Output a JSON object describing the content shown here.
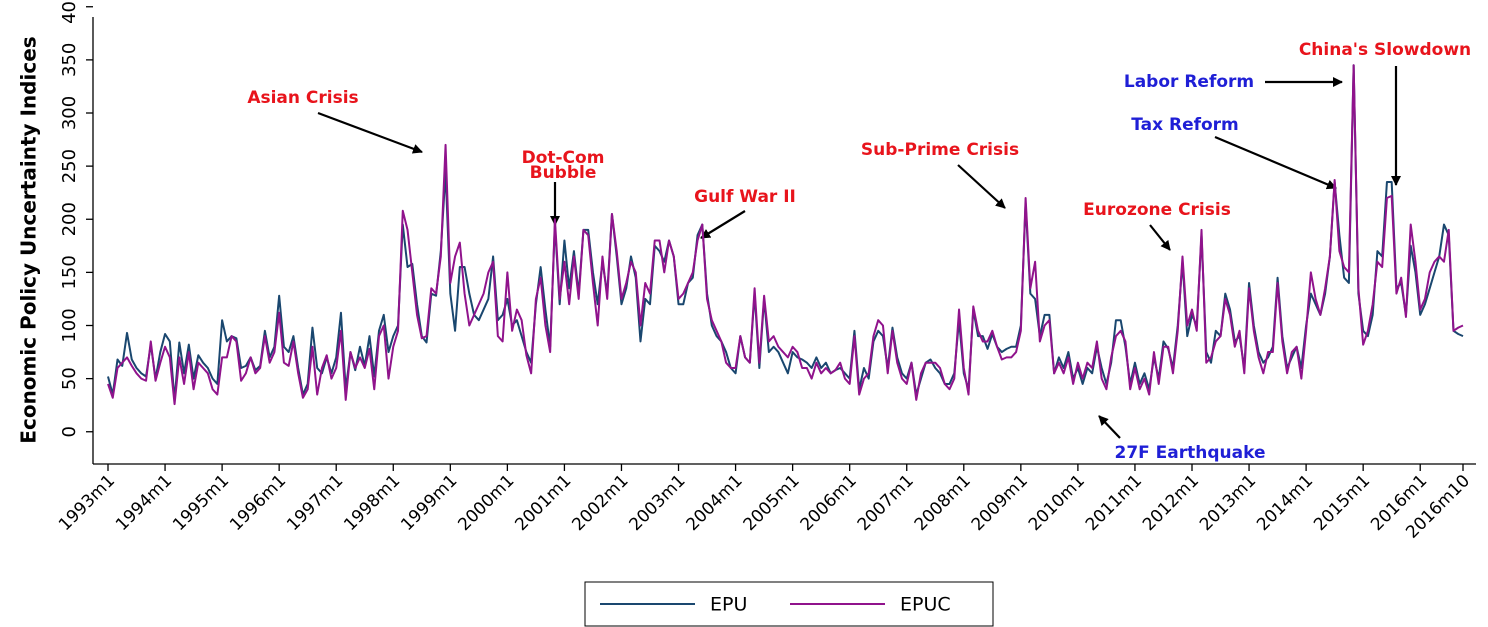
{
  "chart_data": {
    "type": "line",
    "ylabel": "Economic Policy Uncertainty Indices",
    "ylim": [
      -10,
      410
    ],
    "yticks": [
      0,
      50,
      100,
      150,
      200,
      250,
      300,
      350,
      400
    ],
    "categories": [
      "1993m1",
      null,
      null,
      null,
      null,
      null,
      null,
      null,
      null,
      null,
      null,
      null,
      "1994m1",
      null,
      null,
      null,
      null,
      null,
      null,
      null,
      null,
      null,
      null,
      null,
      "1995m1",
      null,
      null,
      null,
      null,
      null,
      null,
      null,
      null,
      null,
      null,
      null,
      "1996m1",
      null,
      null,
      null,
      null,
      null,
      null,
      null,
      null,
      null,
      null,
      null,
      "1997m1",
      null,
      null,
      null,
      null,
      null,
      null,
      null,
      null,
      null,
      null,
      null,
      "1998m1",
      null,
      null,
      null,
      null,
      null,
      null,
      null,
      null,
      null,
      null,
      null,
      "1999m1",
      null,
      null,
      null,
      null,
      null,
      null,
      null,
      null,
      null,
      null,
      null,
      "2000m1",
      null,
      null,
      null,
      null,
      null,
      null,
      null,
      null,
      null,
      null,
      null,
      "2001m1",
      null,
      null,
      null,
      null,
      null,
      null,
      null,
      null,
      null,
      null,
      null,
      "2002m1",
      null,
      null,
      null,
      null,
      null,
      null,
      null,
      null,
      null,
      null,
      null,
      "2003m1",
      null,
      null,
      null,
      null,
      null,
      null,
      null,
      null,
      null,
      null,
      null,
      "2004m1",
      null,
      null,
      null,
      null,
      null,
      null,
      null,
      null,
      null,
      null,
      null,
      "2005m1",
      null,
      null,
      null,
      null,
      null,
      null,
      null,
      null,
      null,
      null,
      null,
      "2006m1",
      null,
      null,
      null,
      null,
      null,
      null,
      null,
      null,
      null,
      null,
      null,
      "2007m1",
      null,
      null,
      null,
      null,
      null,
      null,
      null,
      null,
      null,
      null,
      null,
      "2008m1",
      null,
      null,
      null,
      null,
      null,
      null,
      null,
      null,
      null,
      null,
      null,
      "2009m1",
      null,
      null,
      null,
      null,
      null,
      null,
      null,
      null,
      null,
      null,
      null,
      "2010m1",
      null,
      null,
      null,
      null,
      null,
      null,
      null,
      null,
      null,
      null,
      null,
      "2011m1",
      null,
      null,
      null,
      null,
      null,
      null,
      null,
      null,
      null,
      null,
      null,
      "2012m1",
      null,
      null,
      null,
      null,
      null,
      null,
      null,
      null,
      null,
      null,
      null,
      "2013m1",
      null,
      null,
      null,
      null,
      null,
      null,
      null,
      null,
      null,
      null,
      null,
      "2014m1",
      null,
      null,
      null,
      null,
      null,
      null,
      null,
      null,
      null,
      null,
      null,
      "2015m1",
      null,
      null,
      null,
      null,
      null,
      null,
      null,
      null,
      null,
      null,
      null,
      "2016m1",
      null,
      null,
      null,
      null,
      null,
      null,
      null,
      null,
      "2016m10"
    ],
    "series": [
      {
        "name": "EPU",
        "color": "#1a476f",
        "values": [
          52,
          35,
          68,
          62,
          93,
          68,
          60,
          55,
          52,
          82,
          50,
          75,
          92,
          85,
          30,
          84,
          55,
          82,
          50,
          72,
          65,
          60,
          50,
          45,
          105,
          85,
          90,
          88,
          60,
          62,
          70,
          58,
          62,
          95,
          70,
          80,
          128,
          80,
          75,
          90,
          60,
          35,
          45,
          98,
          60,
          55,
          70,
          55,
          70,
          112,
          40,
          75,
          58,
          80,
          62,
          90,
          52,
          95,
          110,
          75,
          90,
          100,
          195,
          155,
          158,
          120,
          90,
          84,
          130,
          128,
          170,
          245,
          130,
          95,
          155,
          155,
          130,
          110,
          105,
          115,
          125,
          165,
          105,
          110,
          125,
          100,
          105,
          90,
          75,
          65,
          120,
          155,
          115,
          80,
          195,
          120,
          180,
          135,
          170,
          130,
          190,
          190,
          150,
          120,
          160,
          130,
          205,
          165,
          120,
          135,
          165,
          145,
          85,
          125,
          120,
          175,
          170,
          160,
          180,
          165,
          120,
          120,
          140,
          145,
          185,
          195,
          130,
          100,
          90,
          85,
          75,
          60,
          55,
          90,
          70,
          65,
          130,
          60,
          125,
          75,
          80,
          75,
          65,
          55,
          75,
          70,
          68,
          65,
          60,
          70,
          60,
          65,
          55,
          58,
          60,
          55,
          50,
          95,
          40,
          60,
          50,
          85,
          95,
          90,
          60,
          98,
          70,
          55,
          50,
          65,
          35,
          50,
          65,
          68,
          60,
          55,
          45,
          45,
          55,
          105,
          55,
          40,
          115,
          90,
          90,
          78,
          92,
          80,
          75,
          78,
          80,
          80,
          100,
          215,
          130,
          125,
          90,
          110,
          110,
          55,
          70,
          60,
          75,
          50,
          60,
          45,
          60,
          55,
          80,
          60,
          45,
          65,
          105,
          105,
          80,
          45,
          65,
          45,
          55,
          40,
          70,
          50,
          85,
          78,
          60,
          100,
          160,
          90,
          110,
          100,
          185,
          75,
          65,
          95,
          90,
          130,
          115,
          85,
          90,
          60,
          140,
          100,
          75,
          65,
          70,
          80,
          145,
          90,
          60,
          70,
          80,
          60,
          100,
          130,
          120,
          110,
          130,
          165,
          235,
          185,
          145,
          140,
          345,
          130,
          95,
          90,
          110,
          170,
          165,
          235,
          235,
          135,
          140,
          110,
          175,
          150,
          110,
          120,
          135,
          150,
          165,
          195,
          185,
          95,
          92,
          90
        ]
      },
      {
        "name": "EPUC",
        "color": "#90138c",
        "values": [
          45,
          32,
          60,
          65,
          70,
          62,
          55,
          50,
          48,
          85,
          48,
          65,
          80,
          70,
          26,
          70,
          45,
          75,
          40,
          65,
          60,
          55,
          40,
          35,
          70,
          70,
          90,
          85,
          48,
          55,
          70,
          55,
          60,
          90,
          65,
          75,
          112,
          65,
          62,
          85,
          55,
          32,
          40,
          80,
          35,
          60,
          72,
          50,
          60,
          95,
          30,
          75,
          60,
          70,
          60,
          78,
          40,
          90,
          100,
          50,
          80,
          95,
          208,
          190,
          150,
          110,
          88,
          90,
          135,
          130,
          165,
          270,
          140,
          165,
          178,
          130,
          100,
          110,
          120,
          130,
          150,
          160,
          90,
          85,
          150,
          95,
          115,
          105,
          72,
          55,
          125,
          145,
          100,
          75,
          200,
          125,
          160,
          120,
          165,
          125,
          190,
          185,
          140,
          100,
          165,
          125,
          205,
          170,
          125,
          140,
          160,
          150,
          100,
          140,
          130,
          180,
          180,
          150,
          180,
          165,
          125,
          130,
          140,
          150,
          180,
          195,
          125,
          105,
          95,
          85,
          65,
          60,
          60,
          90,
          70,
          65,
          135,
          65,
          128,
          85,
          90,
          80,
          75,
          70,
          80,
          75,
          60,
          60,
          50,
          65,
          55,
          60,
          55,
          58,
          65,
          50,
          45,
          90,
          35,
          50,
          55,
          90,
          105,
          100,
          55,
          95,
          65,
          50,
          45,
          65,
          30,
          55,
          65,
          65,
          65,
          60,
          45,
          40,
          50,
          115,
          60,
          35,
          118,
          95,
          85,
          85,
          95,
          80,
          68,
          70,
          70,
          75,
          95,
          220,
          135,
          160,
          85,
          100,
          105,
          55,
          65,
          55,
          70,
          45,
          65,
          50,
          65,
          60,
          85,
          50,
          40,
          70,
          90,
          95,
          85,
          40,
          60,
          40,
          50,
          35,
          75,
          45,
          80,
          80,
          55,
          95,
          165,
          100,
          115,
          95,
          190,
          65,
          70,
          85,
          90,
          125,
          110,
          80,
          95,
          55,
          135,
          95,
          70,
          55,
          75,
          75,
          140,
          85,
          55,
          75,
          80,
          50,
          95,
          150,
          125,
          110,
          135,
          165,
          237,
          170,
          155,
          150,
          345,
          135,
          82,
          95,
          120,
          160,
          155,
          220,
          222,
          130,
          145,
          108,
          195,
          160,
          115,
          125,
          150,
          160,
          165,
          160,
          190,
          95,
          98,
          100
        ]
      }
    ],
    "annotations": [
      {
        "text": "Asian Crisis",
        "color": "#e8141c"
      },
      {
        "text": "Dot-Com",
        "color": "#e8141c"
      },
      {
        "text": "Bubble",
        "color": "#e8141c"
      },
      {
        "text": "Gulf War II",
        "color": "#e8141c"
      },
      {
        "text": "Sub-Prime Crisis",
        "color": "#e8141c"
      },
      {
        "text": "Eurozone Crisis",
        "color": "#e8141c"
      },
      {
        "text": "Labor Reform",
        "color": "#1f1fd6"
      },
      {
        "text": "Tax Reform",
        "color": "#1f1fd6"
      },
      {
        "text": "China's Slowdown",
        "color": "#e8141c"
      },
      {
        "text": "27F Earthquake",
        "color": "#1f1fd6"
      }
    ]
  }
}
